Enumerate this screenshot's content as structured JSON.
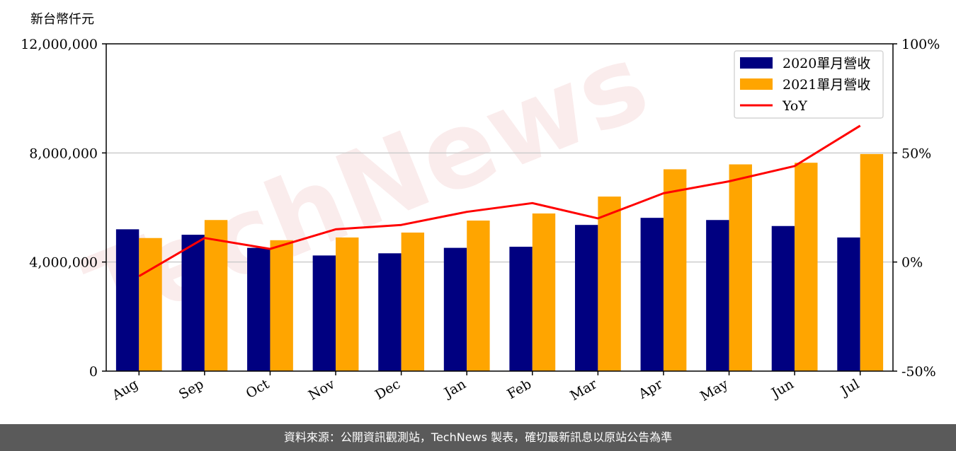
{
  "y_unit": "新台幣仟元",
  "watermark": "TechNews",
  "footer": "資料來源：公開資訊觀測站，TechNews 製表，確切最新訊息以原站公告為準",
  "chart_data": {
    "type": "bar",
    "categories": [
      "Aug",
      "Sep",
      "Oct",
      "Nov",
      "Dec",
      "Jan",
      "Feb",
      "Mar",
      "Apr",
      "May",
      "Jun",
      "Jul"
    ],
    "series": [
      {
        "name": "2020單月營收",
        "kind": "bar",
        "axis": "left",
        "color": "#000080",
        "values": [
          5200000,
          5000000,
          4520000,
          4240000,
          4320000,
          4520000,
          4560000,
          5360000,
          5620000,
          5540000,
          5320000,
          4900000
        ]
      },
      {
        "name": "2021單月營收",
        "kind": "bar",
        "axis": "left",
        "color": "#FFA500",
        "values": [
          4880000,
          5540000,
          4800000,
          4900000,
          5080000,
          5520000,
          5780000,
          6400000,
          7400000,
          7580000,
          7640000,
          7960000
        ]
      },
      {
        "name": "YoY",
        "kind": "line",
        "axis": "right",
        "color": "#FF0000",
        "values": [
          -6.5,
          11,
          6,
          15,
          17,
          23,
          27,
          20,
          31.5,
          37,
          44,
          62.5
        ]
      }
    ],
    "y_left": {
      "range": [
        0,
        12000000
      ],
      "ticks": [
        0,
        4000000,
        8000000,
        12000000
      ],
      "tick_labels": [
        "0",
        "4,000,000",
        "8,000,000",
        "12,000,000"
      ]
    },
    "y_right": {
      "range": [
        -50,
        100
      ],
      "ticks": [
        -50,
        0,
        50,
        100
      ],
      "tick_labels": [
        "-50%",
        "0%",
        "50%",
        "100%"
      ]
    },
    "grid": "horizontal",
    "legend_position": "top-right"
  }
}
